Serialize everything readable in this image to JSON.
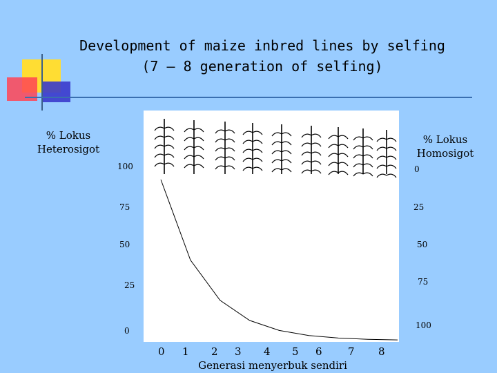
{
  "title_line1": "Development of maize inbred lines by selfing",
  "title_line2": "(7 – 8 generation of selfing)",
  "chart_data": {
    "type": "line",
    "y_left_label": "% Lokus Heterosigot",
    "y_right_label": "% Lokus Homosigot",
    "xlabel": "Generasi menyerbuk sendiri",
    "x": [
      0,
      1,
      2,
      3,
      4,
      5,
      6,
      7,
      8
    ],
    "x_ticks": [
      "0",
      "1",
      "2",
      "3",
      "4",
      "5",
      "6",
      "7",
      "8"
    ],
    "y_left_ticks": [
      "100",
      "75",
      "50",
      "25",
      "0"
    ],
    "y_right_ticks": [
      "0",
      "25",
      "50",
      "75",
      "100"
    ],
    "ylim": [
      0,
      100
    ],
    "series": [
      {
        "values": [
          100,
          50,
          25,
          12.5,
          6.25,
          3.125,
          1.5625,
          0.78,
          0.39
        ]
      }
    ],
    "grid": false,
    "line_color": "#000000",
    "plot_background": "#ffffff"
  }
}
